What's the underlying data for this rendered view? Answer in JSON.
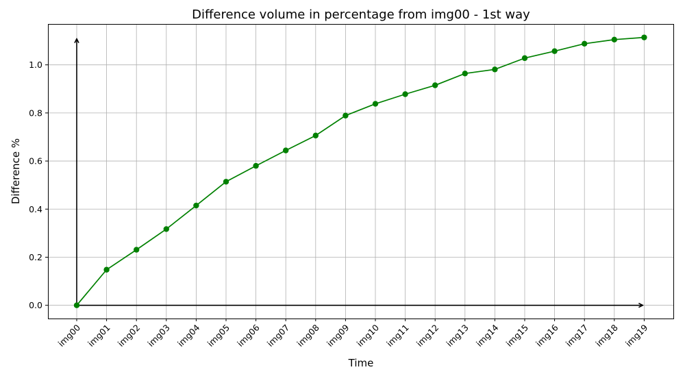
{
  "chart_data": {
    "type": "line",
    "title": "Difference volume in percentage from img00 - 1st way",
    "xlabel": "Time",
    "ylabel": "Difference %",
    "categories": [
      "img00",
      "img01",
      "img02",
      "img03",
      "img04",
      "img05",
      "img06",
      "img07",
      "img08",
      "img09",
      "img10",
      "img11",
      "img12",
      "img13",
      "img14",
      "img15",
      "img16",
      "img17",
      "img18",
      "img19"
    ],
    "values": [
      0.0,
      0.148,
      0.231,
      0.317,
      0.415,
      0.514,
      0.58,
      0.644,
      0.706,
      0.789,
      0.838,
      0.878,
      0.915,
      0.964,
      0.981,
      1.028,
      1.057,
      1.088,
      1.105,
      1.114
    ],
    "ylim": [
      -0.055,
      1.17
    ],
    "yticks": [
      0.0,
      0.2,
      0.4,
      0.6,
      0.8,
      1.0
    ],
    "ytick_labels": [
      "0.0",
      "0.2",
      "0.4",
      "0.6",
      "0.8",
      "1.0"
    ],
    "grid": true,
    "line_color": "#008000",
    "arrow_color": "#000000"
  }
}
